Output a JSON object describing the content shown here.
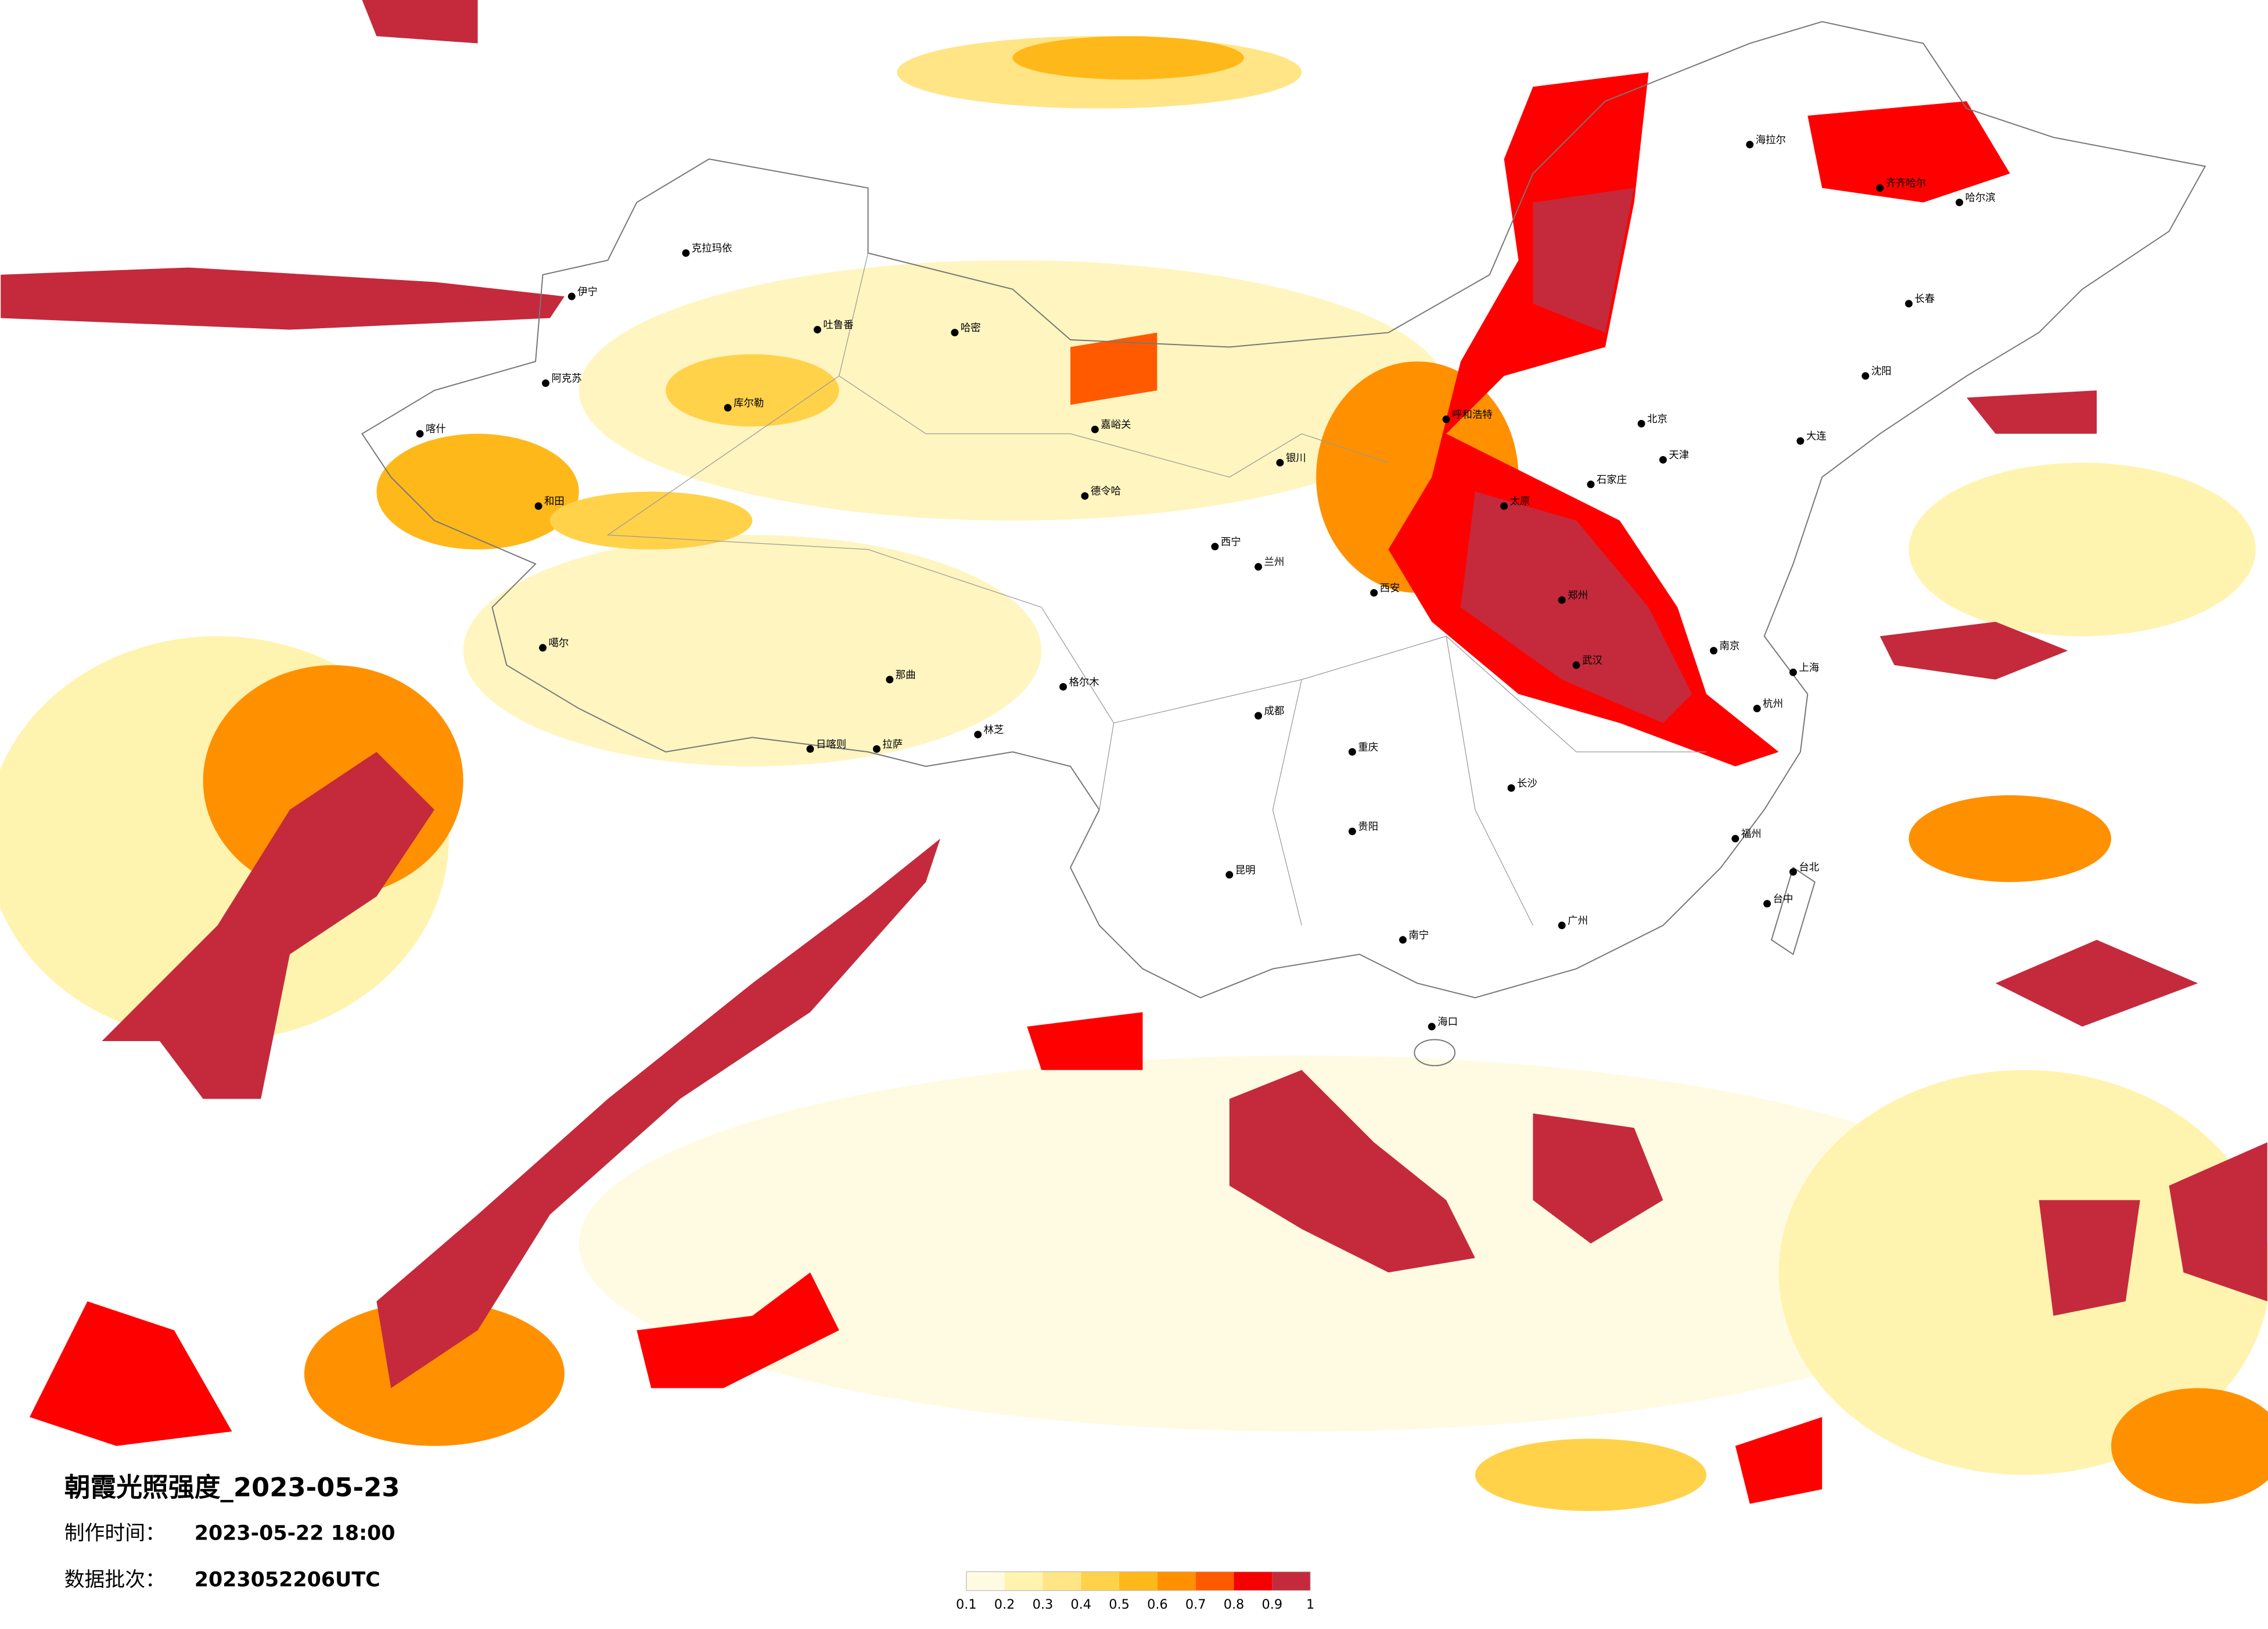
{
  "header": {
    "title": "朝霞光照强度_2023-05-23",
    "made_label": "制作时间：",
    "made_time": "2023-05-22 18:00",
    "batch_label": "数据批次：",
    "batch": "2023052206UTC"
  },
  "legend": {
    "ticks": [
      0.1,
      0.2,
      0.3,
      0.4,
      0.5,
      0.6,
      0.7,
      0.8,
      0.9,
      1
    ],
    "colors": [
      "#fffbe3",
      "#fff3b0",
      "#ffe585",
      "#ffd24a",
      "#ffb81a",
      "#ff9000",
      "#ff5a00",
      "#f40000",
      "#c42a3c"
    ]
  },
  "cities": [
    "克拉玛依",
    "伊宁",
    "阿克苏",
    "喀什",
    "和田",
    "哈密",
    "吐鲁番",
    "库尔勒",
    "嘉峪关",
    "格尔木",
    "德令哈",
    "西宁",
    "兰州",
    "银川",
    "呼和浩特",
    "北京",
    "天津",
    "石家庄",
    "太原",
    "郑州",
    "西安",
    "成都",
    "重庆",
    "贵阳",
    "昆明",
    "拉萨",
    "日喀则",
    "林芝",
    "那曲",
    "长沙",
    "武汉",
    "南京",
    "上海",
    "杭州",
    "福州",
    "台北",
    "台中",
    "广州",
    "海口",
    "南宁",
    "哈尔滨",
    "长春",
    "沈阳",
    "大连",
    "齐齐哈尔",
    "海拉尔",
    "噶尔"
  ]
}
